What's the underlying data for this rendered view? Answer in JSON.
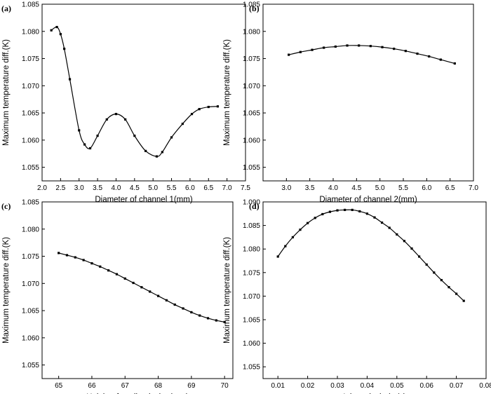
{
  "figure": {
    "panels": [
      "(a)",
      "(b)",
      "(c)",
      "(d)"
    ]
  },
  "chart_data": [
    {
      "type": "line",
      "panel_label": "(a)",
      "xlabel": "Diameter of channel 1(mm)",
      "ylabel": "Maximum temperature diff.(K)",
      "xlim": [
        2.0,
        7.5
      ],
      "ylim": [
        1.0525,
        1.085
      ],
      "xticks": [
        "2.0",
        "2.5",
        "3.0",
        "3.5",
        "4.0",
        "4.5",
        "5.0",
        "5.5",
        "6.0",
        "6.5",
        "7.0",
        "7.5"
      ],
      "yticks": [
        "1.055",
        "1.060",
        "1.065",
        "1.070",
        "1.075",
        "1.080",
        "1.085"
      ],
      "grid": false,
      "legend": "none",
      "series": [
        {
          "x": [
            2.25,
            2.4,
            2.5,
            2.6,
            2.75,
            3.0,
            3.15,
            3.3,
            3.5,
            3.75,
            4.0,
            4.25,
            4.5,
            4.8,
            5.1,
            5.25,
            5.5,
            5.8,
            6.05,
            6.25,
            6.5,
            6.75
          ],
          "y": [
            1.0802,
            1.0808,
            1.0795,
            1.0768,
            1.0712,
            1.0618,
            1.0592,
            1.0585,
            1.0608,
            1.0638,
            1.0648,
            1.0638,
            1.0608,
            1.058,
            1.057,
            1.0578,
            1.0605,
            1.063,
            1.0648,
            1.0657,
            1.0661,
            1.0662
          ]
        }
      ]
    },
    {
      "type": "line",
      "panel_label": "(b)",
      "xlabel": "Diameter of channel 2(mm)",
      "ylabel": "Maximum temperature diff.(K)",
      "xlim": [
        2.5,
        7.0
      ],
      "ylim": [
        1.0525,
        1.085
      ],
      "xticks": [
        "3.0",
        "3.5",
        "4.0",
        "4.5",
        "5.0",
        "5.5",
        "6.0",
        "6.5",
        "7.0"
      ],
      "yticks": [
        "1.055",
        "1.060",
        "1.065",
        "1.070",
        "1.075",
        "1.080",
        "1.085"
      ],
      "grid": false,
      "legend": "none",
      "series": [
        {
          "x": [
            3.05,
            3.3,
            3.55,
            3.8,
            4.05,
            4.3,
            4.55,
            4.8,
            5.05,
            5.3,
            5.55,
            5.8,
            6.05,
            6.3,
            6.6
          ],
          "y": [
            1.0757,
            1.0762,
            1.0766,
            1.077,
            1.0772,
            1.0774,
            1.0774,
            1.0773,
            1.0771,
            1.0768,
            1.0764,
            1.0759,
            1.0754,
            1.0748,
            1.0741
          ]
        }
      ]
    },
    {
      "type": "line",
      "panel_label": "(c)",
      "xlabel": "Height of cooling jacket(mm)",
      "ylabel": "Maximum temperature diff.(K)",
      "xlim": [
        64.5,
        70.25
      ],
      "ylim": [
        1.0525,
        1.085
      ],
      "xticks": [
        "65",
        "66",
        "67",
        "68",
        "69",
        "70"
      ],
      "yticks": [
        "1.055",
        "1.060",
        "1.065",
        "1.070",
        "1.075",
        "1.080",
        "1.085"
      ],
      "grid": false,
      "legend": "none",
      "series": [
        {
          "x": [
            65.0,
            65.25,
            65.5,
            65.75,
            66.0,
            66.25,
            66.5,
            66.75,
            67.0,
            67.25,
            67.5,
            67.75,
            68.0,
            68.25,
            68.5,
            68.75,
            69.0,
            69.25,
            69.5,
            69.75,
            70.0
          ],
          "y": [
            1.0756,
            1.0752,
            1.0748,
            1.0743,
            1.0737,
            1.0731,
            1.0724,
            1.0717,
            1.0709,
            1.0701,
            1.0693,
            1.0685,
            1.0677,
            1.0669,
            1.0661,
            1.0654,
            1.0647,
            1.0641,
            1.0636,
            1.0632,
            1.0629
          ]
        }
      ]
    },
    {
      "type": "line",
      "panel_label": "(d)",
      "xlabel": "Inlet velocity(m/s)",
      "ylabel": "Maximum temperature diff.(K)",
      "xlim": [
        0.005,
        0.08
      ],
      "ylim": [
        1.0525,
        1.09
      ],
      "xticks": [
        "0.01",
        "0.02",
        "0.03",
        "0.04",
        "0.05",
        "0.06",
        "0.07",
        "0.08"
      ],
      "yticks": [
        "1.055",
        "1.060",
        "1.065",
        "1.070",
        "1.075",
        "1.080",
        "1.085",
        "1.090"
      ],
      "grid": false,
      "legend": "none",
      "series": [
        {
          "x": [
            0.01,
            0.0125,
            0.015,
            0.0175,
            0.02,
            0.0225,
            0.025,
            0.0275,
            0.03,
            0.0325,
            0.035,
            0.0375,
            0.04,
            0.0425,
            0.045,
            0.0475,
            0.05,
            0.0525,
            0.055,
            0.0575,
            0.06,
            0.0625,
            0.065,
            0.0675,
            0.07,
            0.0725
          ],
          "y": [
            1.0784,
            1.0806,
            1.0825,
            1.0841,
            1.0855,
            1.0866,
            1.0874,
            1.0879,
            1.0882,
            1.0883,
            1.0883,
            1.088,
            1.0875,
            1.0867,
            1.0856,
            1.0845,
            1.0831,
            1.0817,
            1.0801,
            1.0784,
            1.0767,
            1.075,
            1.0734,
            1.0719,
            1.0705,
            1.069
          ]
        }
      ]
    }
  ]
}
